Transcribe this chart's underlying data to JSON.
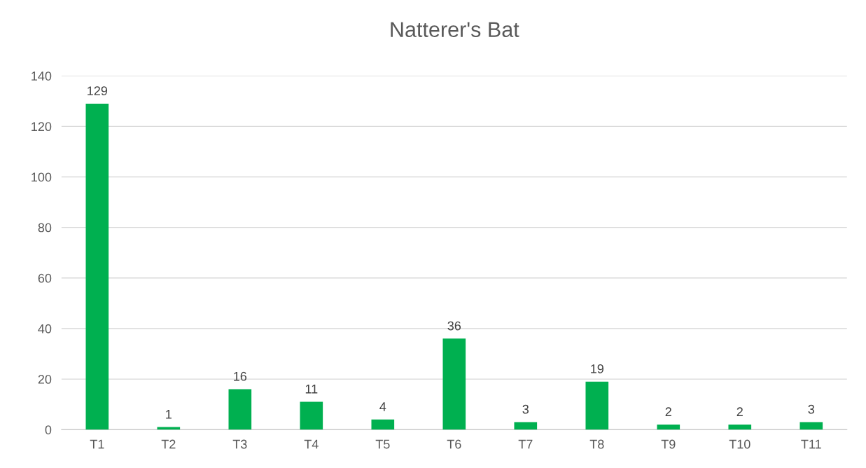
{
  "chart_data": {
    "type": "bar",
    "title": "Natterer's Bat",
    "categories": [
      "T1",
      "T2",
      "T3",
      "T4",
      "T5",
      "T6",
      "T7",
      "T8",
      "T9",
      "T10",
      "T11"
    ],
    "values": [
      129,
      1,
      16,
      11,
      4,
      36,
      3,
      19,
      2,
      2,
      3
    ],
    "color": "#00b050",
    "ylim": [
      0,
      140
    ],
    "yticks": [
      0,
      20,
      40,
      60,
      80,
      100,
      120,
      140
    ],
    "grid": "y",
    "data_labels": true
  }
}
